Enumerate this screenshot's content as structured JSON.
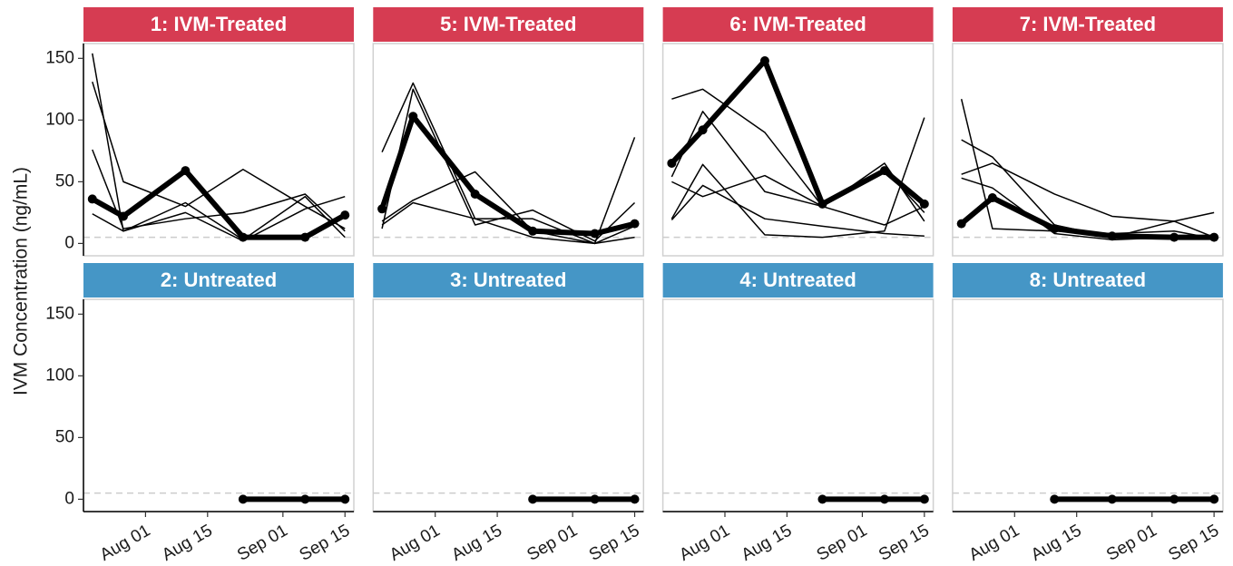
{
  "y_label": "IVM Concentration (ng/mL)",
  "chart_data": [
    {
      "type": "line",
      "title": "1: IVM-Treated",
      "strip_color": "#d63c52",
      "hline": 5,
      "xlim": [
        199,
        260
      ],
      "ylim": [
        -10,
        162
      ],
      "yticks": [
        0,
        50,
        100,
        150
      ],
      "x": [
        201,
        208,
        222,
        235,
        249,
        258
      ],
      "series": [
        {
          "color": "#000000",
          "line_width": 1.5,
          "values": [
            154,
            10,
            33,
            3,
            38,
            5
          ]
        },
        {
          "color": "#000000",
          "line_width": 1.5,
          "values": [
            131,
            50,
            30,
            60,
            30,
            12
          ]
        },
        {
          "color": "#000000",
          "line_width": 1.5,
          "values": [
            76,
            12,
            20,
            25,
            40,
            10
          ]
        },
        {
          "color": "#000000",
          "line_width": 1.5,
          "values": [
            24,
            10,
            25,
            2,
            28,
            38
          ]
        },
        {
          "color": "#000000",
          "line_width": 6,
          "markers": true,
          "values": [
            36,
            22,
            59,
            5,
            5,
            23
          ]
        }
      ]
    },
    {
      "type": "line",
      "title": "5: IVM-Treated",
      "strip_color": "#d63c52",
      "hline": 5,
      "xlim": [
        199,
        260
      ],
      "ylim": [
        -10,
        162
      ],
      "x": [
        201,
        208,
        222,
        235,
        249,
        258
      ],
      "series": [
        {
          "color": "#000000",
          "line_width": 1.5,
          "values": [
            74,
            130,
            20,
            5,
            0,
            86
          ]
        },
        {
          "color": "#000000",
          "line_width": 1.5,
          "values": [
            12,
            125,
            15,
            27,
            2,
            33
          ]
        },
        {
          "color": "#000000",
          "line_width": 1.5,
          "values": [
            18,
            35,
            58,
            10,
            0,
            5
          ]
        },
        {
          "color": "#000000",
          "line_width": 1.5,
          "values": [
            15,
            33,
            20,
            20,
            0,
            14
          ]
        },
        {
          "color": "#000000",
          "line_width": 6,
          "markers": true,
          "values": [
            28,
            103,
            40,
            10,
            8,
            16
          ]
        }
      ]
    },
    {
      "type": "line",
      "title": "6: IVM-Treated",
      "strip_color": "#d63c52",
      "hline": 5,
      "xlim": [
        199,
        260
      ],
      "ylim": [
        -10,
        162
      ],
      "x": [
        201,
        208,
        222,
        235,
        249,
        258
      ],
      "series": [
        {
          "color": "#000000",
          "line_width": 1.5,
          "values": [
            117,
            125,
            90,
            30,
            15,
            30
          ]
        },
        {
          "color": "#000000",
          "line_width": 1.5,
          "values": [
            54,
            107,
            42,
            30,
            65,
            18
          ]
        },
        {
          "color": "#000000",
          "line_width": 1.5,
          "values": [
            20,
            64,
            7,
            5,
            10,
            102
          ]
        },
        {
          "color": "#000000",
          "line_width": 1.5,
          "values": [
            19,
            47,
            20,
            14,
            8,
            6
          ]
        },
        {
          "color": "#000000",
          "line_width": 1.5,
          "values": [
            50,
            38,
            55,
            30,
            60,
            25
          ]
        },
        {
          "color": "#000000",
          "line_width": 6,
          "markers": true,
          "values": [
            65,
            92,
            148,
            32,
            59,
            32
          ]
        }
      ]
    },
    {
      "type": "line",
      "title": "7: IVM-Treated",
      "strip_color": "#d63c52",
      "hline": 5,
      "xlim": [
        199,
        260
      ],
      "ylim": [
        -10,
        162
      ],
      "x": [
        201,
        208,
        222,
        235,
        249,
        258
      ],
      "series": [
        {
          "color": "#000000",
          "line_width": 1.5,
          "values": [
            117,
            12,
            10,
            8,
            10,
            4
          ]
        },
        {
          "color": "#000000",
          "line_width": 1.5,
          "values": [
            84,
            70,
            15,
            5,
            18,
            25
          ]
        },
        {
          "color": "#000000",
          "line_width": 1.5,
          "values": [
            56,
            65,
            40,
            22,
            18,
            5
          ]
        },
        {
          "color": "#000000",
          "line_width": 1.5,
          "values": [
            53,
            45,
            8,
            3,
            5,
            5
          ]
        },
        {
          "color": "#000000",
          "line_width": 6,
          "markers": true,
          "values": [
            16,
            37,
            12,
            6,
            5,
            5
          ]
        }
      ]
    },
    {
      "type": "line",
      "title": "2: Untreated",
      "strip_color": "#4596c6",
      "hline": 5,
      "xlim": [
        199,
        260
      ],
      "ylim": [
        -10,
        162
      ],
      "yticks": [
        0,
        50,
        100,
        150
      ],
      "xticks": [
        {
          "value": 213,
          "label": "Aug 01"
        },
        {
          "value": 227,
          "label": "Aug 15"
        },
        {
          "value": 244,
          "label": "Sep 01"
        },
        {
          "value": 258,
          "label": "Sep 15"
        }
      ],
      "x": [
        235,
        249,
        258
      ],
      "series": [
        {
          "color": "#000000",
          "line_width": 6,
          "markers": true,
          "values": [
            0,
            0,
            0
          ]
        }
      ]
    },
    {
      "type": "line",
      "title": "3: Untreated",
      "strip_color": "#4596c6",
      "hline": 5,
      "xlim": [
        199,
        260
      ],
      "ylim": [
        -10,
        162
      ],
      "xticks": [
        {
          "value": 213,
          "label": "Aug 01"
        },
        {
          "value": 227,
          "label": "Aug 15"
        },
        {
          "value": 244,
          "label": "Sep 01"
        },
        {
          "value": 258,
          "label": "Sep 15"
        }
      ],
      "x": [
        235,
        249,
        258
      ],
      "series": [
        {
          "color": "#000000",
          "line_width": 6,
          "markers": true,
          "values": [
            0,
            0,
            0
          ]
        }
      ]
    },
    {
      "type": "line",
      "title": "4: Untreated",
      "strip_color": "#4596c6",
      "hline": 5,
      "xlim": [
        199,
        260
      ],
      "ylim": [
        -10,
        162
      ],
      "xticks": [
        {
          "value": 213,
          "label": "Aug 01"
        },
        {
          "value": 227,
          "label": "Aug 15"
        },
        {
          "value": 244,
          "label": "Sep 01"
        },
        {
          "value": 258,
          "label": "Sep 15"
        }
      ],
      "x": [
        235,
        249,
        258
      ],
      "series": [
        {
          "color": "#000000",
          "line_width": 6,
          "markers": true,
          "values": [
            0,
            0,
            0
          ]
        }
      ]
    },
    {
      "type": "line",
      "title": "8: Untreated",
      "strip_color": "#4596c6",
      "hline": 5,
      "xlim": [
        199,
        260
      ],
      "ylim": [
        -10,
        162
      ],
      "xticks": [
        {
          "value": 213,
          "label": "Aug 01"
        },
        {
          "value": 227,
          "label": "Aug 15"
        },
        {
          "value": 244,
          "label": "Sep 01"
        },
        {
          "value": 258,
          "label": "Sep 15"
        }
      ],
      "x": [
        222,
        235,
        249,
        258
      ],
      "series": [
        {
          "color": "#000000",
          "line_width": 6,
          "markers": true,
          "values": [
            0,
            0,
            0,
            0
          ]
        }
      ]
    }
  ]
}
